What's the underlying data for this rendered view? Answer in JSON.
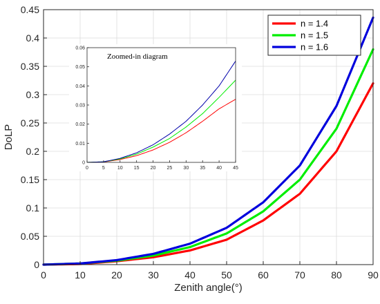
{
  "chart_data": [
    {
      "type": "line",
      "xlabel": "Zenith angle(°)",
      "ylabel": "DoLP",
      "xlim": [
        0,
        90
      ],
      "ylim": [
        0,
        0.45
      ],
      "xticks": [
        "0",
        "10",
        "20",
        "30",
        "40",
        "50",
        "60",
        "70",
        "80",
        "90"
      ],
      "yticks": [
        "0",
        "0.05",
        "0.1",
        "0.15",
        "0.2",
        "0.25",
        "0.3",
        "0.35",
        "0.4",
        "0.45"
      ],
      "grid": true,
      "legend_position": "top-right",
      "x": [
        0,
        10,
        20,
        30,
        40,
        50,
        60,
        70,
        80,
        90
      ],
      "series": [
        {
          "name": "n = 1.4",
          "color": "#ff0000",
          "values": [
            0,
            0.001,
            0.006,
            0.013,
            0.025,
            0.044,
            0.078,
            0.125,
            0.2,
            0.32
          ]
        },
        {
          "name": "n = 1.5",
          "color": "#00ee00",
          "values": [
            0,
            0.002,
            0.007,
            0.016,
            0.031,
            0.055,
            0.094,
            0.15,
            0.24,
            0.38
          ]
        },
        {
          "name": "n = 1.6",
          "color": "#0000dd",
          "values": [
            0,
            0.002,
            0.008,
            0.019,
            0.037,
            0.065,
            0.11,
            0.175,
            0.28,
            0.436
          ]
        }
      ]
    },
    {
      "type": "line",
      "title": "Zoomed-in diagram",
      "xlim": [
        0,
        45
      ],
      "ylim": [
        0,
        0.06
      ],
      "xticks": [
        "0",
        "5",
        "10",
        "15",
        "20",
        "25",
        "30",
        "35",
        "40",
        "45"
      ],
      "yticks": [
        "0",
        "0.01",
        "0.02",
        "0.03",
        "0.04",
        "0.05",
        "0.06"
      ],
      "x": [
        0,
        5,
        10,
        15,
        20,
        25,
        30,
        35,
        40,
        45
      ],
      "series": [
        {
          "name": "n = 1.4",
          "color": "#ff0000",
          "values": [
            0,
            0.0002,
            0.0015,
            0.0035,
            0.0065,
            0.0105,
            0.0155,
            0.0215,
            0.028,
            0.033
          ]
        },
        {
          "name": "n = 1.5",
          "color": "#00ee00",
          "values": [
            0,
            0.0003,
            0.0018,
            0.0043,
            0.008,
            0.0125,
            0.0185,
            0.0255,
            0.034,
            0.043
          ]
        },
        {
          "name": "n = 1.6",
          "color": "#0000aa",
          "values": [
            0,
            0.0003,
            0.0021,
            0.005,
            0.0092,
            0.0148,
            0.0215,
            0.03,
            0.04,
            0.053
          ]
        }
      ]
    }
  ]
}
